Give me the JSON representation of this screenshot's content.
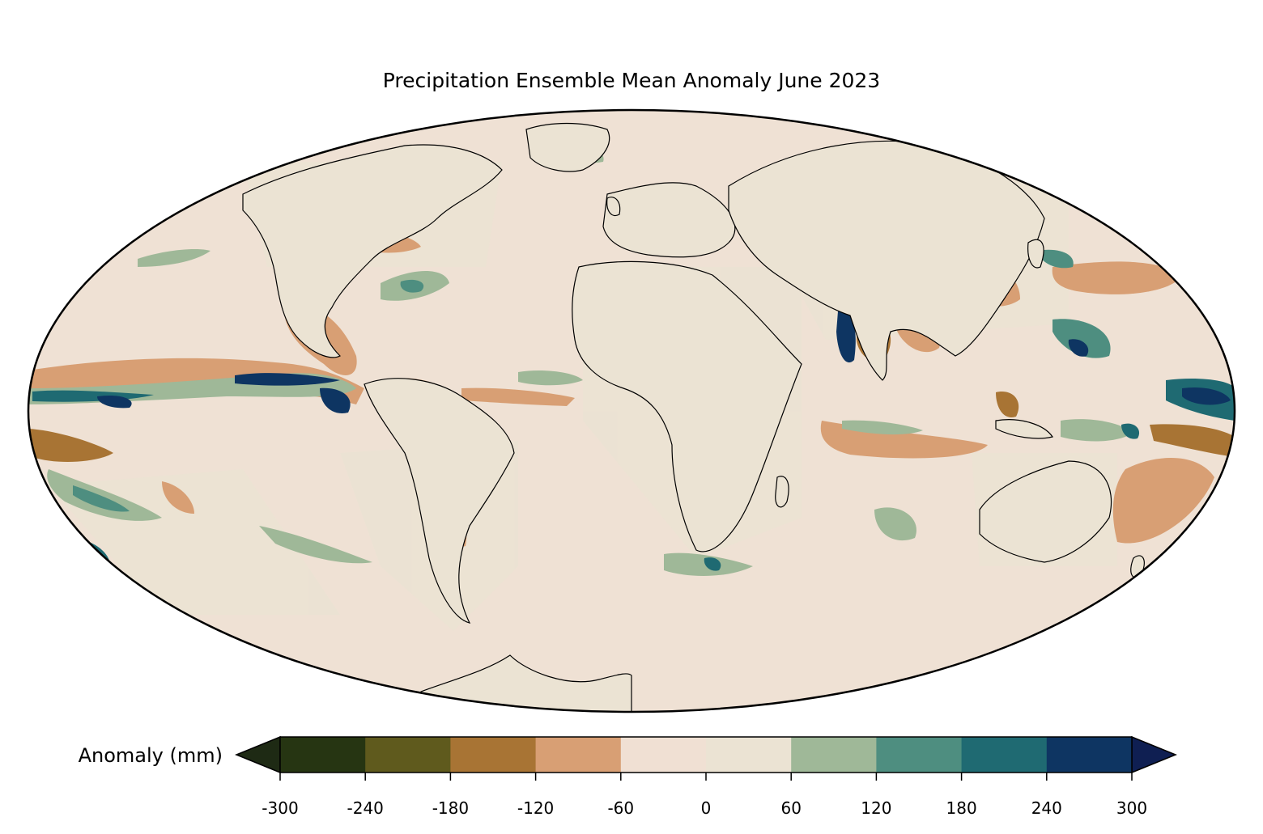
{
  "title": "Precipitation Ensemble Mean Anomaly June 2023",
  "colorbar": {
    "label": "Anomaly (mm)",
    "ticks": [
      "-300",
      "-240",
      "-180",
      "-120",
      "-60",
      "0",
      "60",
      "120",
      "180",
      "240",
      "300"
    ],
    "levels": [
      -300,
      -240,
      -180,
      -120,
      -60,
      0,
      60,
      120,
      180,
      240,
      300
    ],
    "colors": [
      "#263512",
      "#5f5a1d",
      "#a87434",
      "#d89f74",
      "#f0e0d3",
      "#ebe3d3",
      "#9fb898",
      "#4e8e80",
      "#1f6a72",
      "#0e3562"
    ],
    "under_color": "#1e2a14",
    "over_color": "#0f1f52",
    "extend": "both"
  },
  "map": {
    "projection": "mollweide",
    "background_color": "#efe1d4",
    "land_color": "#ebe3d3"
  }
}
